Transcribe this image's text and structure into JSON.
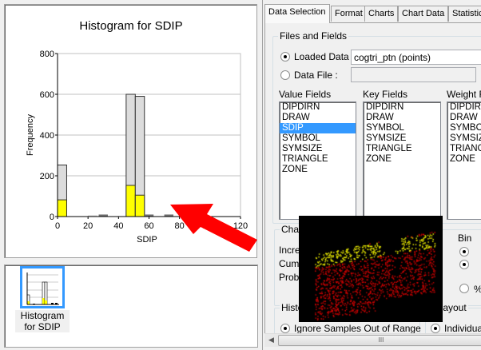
{
  "chart_data": {
    "type": "bar",
    "title": "Histogram for SDIP",
    "xlabel": "SDIP",
    "ylabel": "Frequency",
    "xlim": [
      0,
      120
    ],
    "ylim": [
      0,
      800
    ],
    "xticks": [
      "0",
      "20",
      "40",
      "60",
      "80",
      "100",
      "120"
    ],
    "yticks": [
      "0",
      "200",
      "400",
      "600",
      "800"
    ],
    "grid": true,
    "colors": {
      "total": "#dcdcdc",
      "highlight": "#ffff00",
      "small": "#707070"
    },
    "bins": [
      {
        "from": 0,
        "to": 6,
        "total": 253,
        "highlight": 82
      },
      {
        "from": 20,
        "to": 26,
        "total": 3,
        "highlight": 0
      },
      {
        "from": 27,
        "to": 33,
        "total": 10,
        "highlight": 0
      },
      {
        "from": 45,
        "to": 51,
        "total": 600,
        "highlight": 153
      },
      {
        "from": 51,
        "to": 57,
        "total": 590,
        "highlight": 105
      },
      {
        "from": 57,
        "to": 63,
        "total": 10,
        "highlight": 0
      },
      {
        "from": 70,
        "to": 76,
        "total": 10,
        "highlight": 0
      },
      {
        "from": 90,
        "to": 96,
        "total": 12,
        "highlight": 0
      }
    ]
  },
  "thumbnail": {
    "label": "Histogram for SDIP"
  },
  "tabs": [
    "Data Selection",
    "Format",
    "Charts",
    "Chart Data",
    "Statistic"
  ],
  "files": {
    "group": "Files and Fields",
    "loaded_label": "Loaded Data :",
    "loaded_value": "cogtri_ptn (points)",
    "file_label": "Data File :",
    "file_value": ""
  },
  "value_fields": {
    "label": "Value Fields",
    "items": [
      "DIPDIRN",
      "DRAW",
      "SDIP",
      "SYMBOL",
      "SYMSIZE",
      "TRIANGLE",
      "ZONE"
    ],
    "selected": "SDIP"
  },
  "key_fields": {
    "label": "Key Fields",
    "items": [
      "DIPDIRN",
      "DRAW",
      "SYMBOL",
      "SYMSIZE",
      "TRIANGLE",
      "ZONE"
    ]
  },
  "weight_fields": {
    "label": "Weight Fi",
    "items": [
      "DIPDIRN",
      "DRAW",
      "SYMBOL",
      "SYMSIZE",
      "TRIANGLE",
      "ZONE"
    ]
  },
  "chart_group": {
    "label": "Chart",
    "rows": [
      "Increm",
      "Cumu",
      "Proba"
    ],
    "bin_label": "Bin",
    "percent_label": "%"
  },
  "histo_group": {
    "label": "Histo",
    "option": "Ignore Samples Out of Range"
  },
  "layout_group": {
    "label": "rt Layout",
    "option": "Individual"
  },
  "scrollbar": {
    "grip": "III"
  }
}
